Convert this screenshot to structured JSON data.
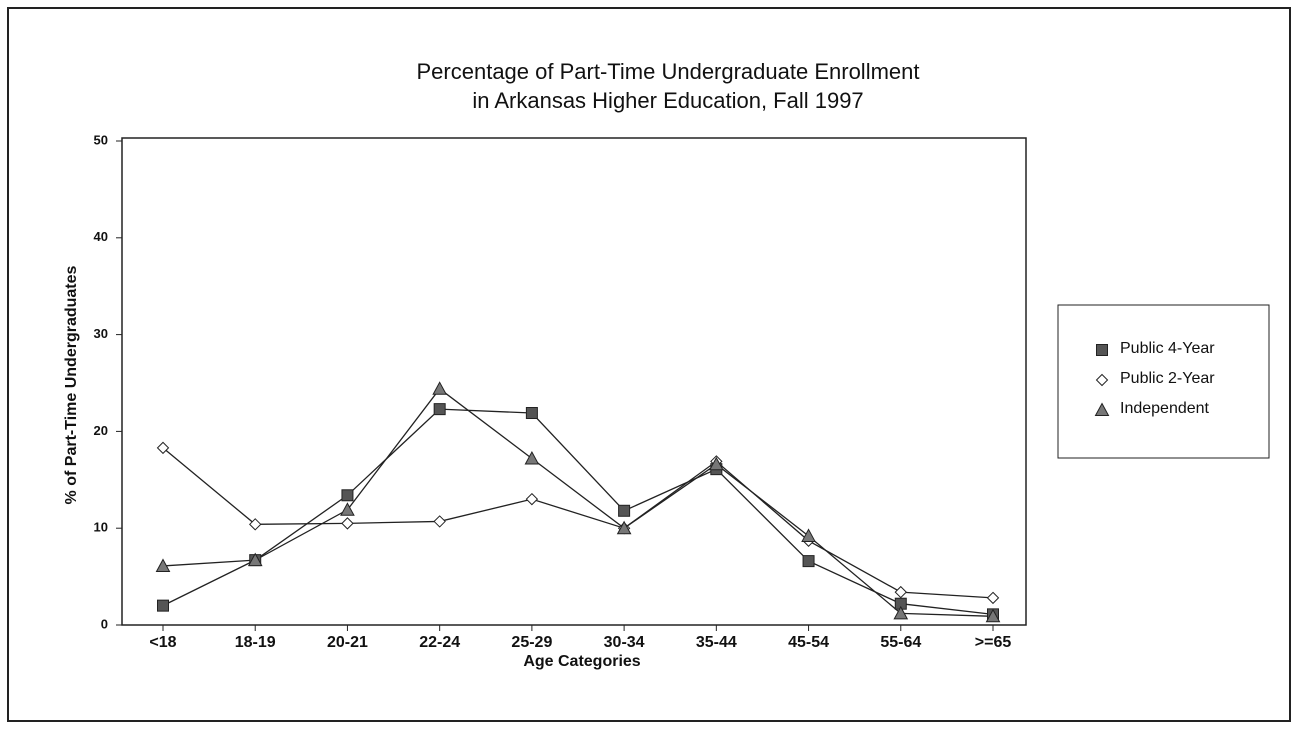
{
  "chart_data": {
    "type": "line",
    "title": [
      "Percentage of Part-Time Undergraduate Enrollment",
      "in Arkansas Higher Education, Fall 1997"
    ],
    "ylabel": "% of Part-Time Undergraduates",
    "xlabel": "Age Categories",
    "categories": [
      "<18",
      "18-19",
      "20-21",
      "22-24",
      "25-29",
      "30-34",
      "35-44",
      "45-54",
      "55-64",
      ">=65"
    ],
    "series": [
      {
        "name": "Public 4-Year",
        "color": "#555555",
        "marker": "square",
        "values": [
          2.0,
          6.7,
          13.4,
          22.3,
          21.9,
          11.8,
          16.1,
          6.6,
          2.2,
          1.1
        ]
      },
      {
        "name": "Public 2-Year",
        "color": "#ffffff",
        "marker": "diamond",
        "values": [
          18.3,
          10.4,
          10.5,
          10.7,
          13.0,
          10.0,
          16.9,
          8.7,
          3.4,
          2.8
        ]
      },
      {
        "name": "Independent",
        "color": "#777777",
        "marker": "triangle",
        "values": [
          6.1,
          6.7,
          11.9,
          24.4,
          17.2,
          10.0,
          16.6,
          9.2,
          1.2,
          0.9
        ]
      }
    ],
    "ylim": [
      0,
      50
    ],
    "yticks": [
      0,
      10,
      20,
      30,
      40,
      50
    ],
    "grid": false,
    "legend": "right"
  }
}
